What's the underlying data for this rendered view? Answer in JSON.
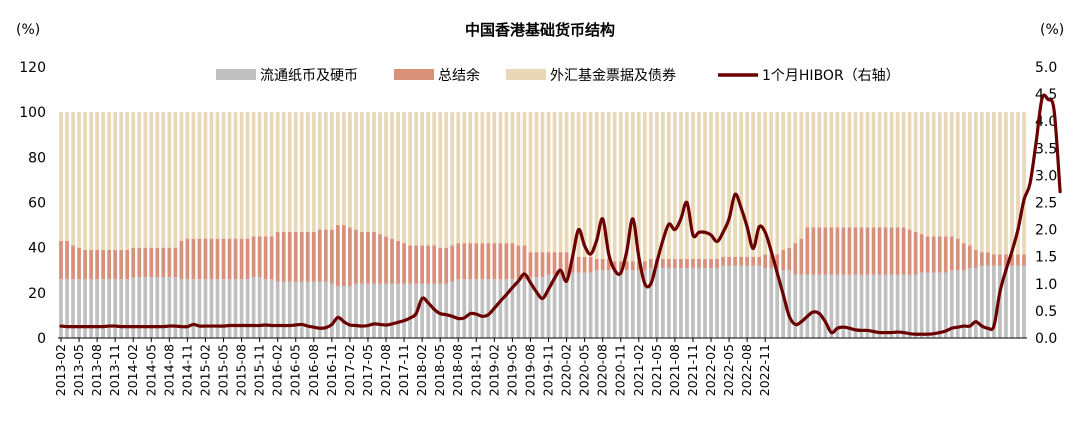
{
  "chart_data": {
    "type": "bar",
    "title": "中国香港基础货币结构",
    "left_axis_unit": "(%)",
    "right_axis_unit": "(%)",
    "ylim": [
      0,
      120
    ],
    "y2lim": [
      0,
      5.0
    ],
    "y_ticks": [
      "0",
      "20",
      "40",
      "60",
      "80",
      "100",
      "120"
    ],
    "y2_ticks": [
      "0.0",
      "0.5",
      "1.0",
      "1.5",
      "2.0",
      "2.5",
      "3.0",
      "3.5",
      "4.0",
      "4.5",
      "5.0"
    ],
    "x_tick_labels": [
      "2013-02",
      "2013-05",
      "2013-08",
      "2013-11",
      "2014-02",
      "2014-05",
      "2014-08",
      "2014-11",
      "2015-02",
      "2015-05",
      "2015-08",
      "2015-11",
      "2016-02",
      "2016-05",
      "2016-08",
      "2016-11",
      "2017-02",
      "2017-05",
      "2017-08",
      "2017-11",
      "2018-02",
      "2018-05",
      "2018-08",
      "2018-11",
      "2019-02",
      "2019-05",
      "2019-08",
      "2019-11",
      "2020-02",
      "2020-05",
      "2020-08",
      "2020-11",
      "2021-02",
      "2021-05",
      "2021-08",
      "2021-11",
      "2022-02",
      "2022-05",
      "2022-08",
      "2022-11"
    ],
    "legend": {
      "placement": "top"
    },
    "colors": {
      "currency": "#c0c0c0",
      "balance": "#d9907b",
      "efbn": "#e8d8b8",
      "hibor": "#6b0000"
    },
    "series": [
      {
        "name": "流通纸币及硬币",
        "type": "stacked-bar",
        "values": [
          26,
          26,
          26,
          26,
          26,
          26,
          26,
          26,
          26,
          26,
          26,
          26,
          27,
          27,
          27,
          27,
          27,
          27,
          27,
          27,
          26,
          26,
          26,
          26,
          26,
          26,
          26,
          26,
          26,
          26,
          26,
          26,
          27,
          27,
          26,
          26,
          25,
          25,
          25,
          25,
          25,
          25,
          25,
          25,
          25,
          24,
          23,
          23,
          23,
          24,
          24,
          24,
          24,
          24,
          24,
          24,
          24,
          24,
          24,
          24,
          24,
          24,
          24,
          24,
          24,
          25,
          26,
          26,
          26,
          26,
          26,
          26,
          26,
          26,
          26,
          26,
          26,
          26,
          27,
          27,
          27,
          28,
          28,
          28,
          28,
          29,
          29,
          29,
          29,
          30,
          30,
          30,
          30,
          30,
          30,
          30,
          30,
          30,
          31,
          31,
          31,
          31,
          31,
          31,
          31,
          31,
          31,
          31,
          31,
          31,
          32,
          32,
          32,
          32,
          32,
          32,
          32,
          31,
          31,
          31,
          30,
          30,
          28,
          28,
          28,
          28,
          28,
          28,
          28,
          28,
          28,
          28,
          28,
          28,
          28,
          28,
          28,
          28,
          28,
          28,
          28,
          28,
          28,
          29,
          29,
          29,
          29,
          29,
          30,
          30,
          30,
          31,
          31,
          32,
          32,
          32,
          32,
          32,
          32,
          32,
          32
        ]
      },
      {
        "name": "总结余",
        "type": "stacked-bar",
        "values": [
          17,
          17,
          15,
          14,
          13,
          13,
          13,
          13,
          13,
          13,
          13,
          13,
          13,
          13,
          13,
          13,
          13,
          13,
          13,
          13,
          17,
          18,
          18,
          18,
          18,
          18,
          18,
          18,
          18,
          18,
          18,
          18,
          18,
          18,
          19,
          19,
          22,
          22,
          22,
          22,
          22,
          22,
          22,
          23,
          23,
          24,
          27,
          27,
          26,
          24,
          23,
          23,
          23,
          22,
          21,
          20,
          19,
          18,
          17,
          17,
          17,
          17,
          17,
          16,
          16,
          16,
          16,
          16,
          16,
          16,
          16,
          16,
          16,
          16,
          16,
          16,
          15,
          15,
          11,
          11,
          11,
          10,
          10,
          10,
          10,
          8,
          7,
          7,
          7,
          5,
          5,
          5,
          4,
          4,
          4,
          4,
          4,
          4,
          4,
          4,
          4,
          4,
          4,
          4,
          4,
          4,
          4,
          4,
          4,
          4,
          4,
          4,
          4,
          4,
          4,
          4,
          4,
          6,
          6,
          6,
          9,
          10,
          14,
          16,
          21,
          21,
          21,
          21,
          21,
          21,
          21,
          21,
          21,
          21,
          21,
          21,
          21,
          21,
          21,
          21,
          21,
          20,
          19,
          17,
          16,
          16,
          16,
          16,
          15,
          14,
          12,
          10,
          8,
          6,
          6,
          5,
          5,
          5,
          5,
          5,
          5
        ]
      },
      {
        "name": "外汇基金票据及债券",
        "type": "stacked-bar",
        "values": [
          57,
          57,
          59,
          60,
          61,
          61,
          61,
          61,
          61,
          61,
          61,
          61,
          60,
          60,
          60,
          60,
          60,
          60,
          60,
          60,
          57,
          56,
          56,
          56,
          56,
          56,
          56,
          56,
          56,
          56,
          56,
          56,
          55,
          55,
          55,
          55,
          53,
          53,
          53,
          53,
          53,
          53,
          53,
          52,
          52,
          52,
          50,
          50,
          51,
          52,
          53,
          53,
          53,
          54,
          55,
          56,
          57,
          58,
          59,
          59,
          59,
          59,
          59,
          60,
          60,
          59,
          58,
          58,
          58,
          58,
          58,
          58,
          58,
          58,
          58,
          58,
          59,
          59,
          62,
          62,
          62,
          62,
          62,
          62,
          62,
          63,
          64,
          64,
          64,
          65,
          65,
          65,
          66,
          66,
          66,
          66,
          66,
          66,
          65,
          65,
          65,
          65,
          65,
          65,
          65,
          65,
          65,
          65,
          65,
          65,
          64,
          64,
          64,
          64,
          64,
          64,
          64,
          63,
          63,
          63,
          61,
          60,
          58,
          56,
          51,
          51,
          51,
          51,
          51,
          51,
          51,
          51,
          51,
          51,
          51,
          51,
          51,
          51,
          51,
          51,
          51,
          52,
          53,
          54,
          55,
          55,
          55,
          55,
          55,
          56,
          58,
          59,
          61,
          62,
          62,
          63,
          63,
          63,
          63,
          63,
          63
        ]
      },
      {
        "name": "1个月HIBOR（右轴）",
        "type": "line",
        "axis": "right",
        "values": [
          0.22,
          0.21,
          0.21,
          0.21,
          0.21,
          0.21,
          0.21,
          0.21,
          0.22,
          0.22,
          0.21,
          0.21,
          0.21,
          0.21,
          0.21,
          0.21,
          0.21,
          0.21,
          0.22,
          0.22,
          0.21,
          0.21,
          0.25,
          0.22,
          0.22,
          0.22,
          0.22,
          0.22,
          0.23,
          0.23,
          0.23,
          0.23,
          0.23,
          0.23,
          0.24,
          0.23,
          0.23,
          0.23,
          0.23,
          0.24,
          0.25,
          0.22,
          0.2,
          0.18,
          0.19,
          0.25,
          0.38,
          0.3,
          0.24,
          0.23,
          0.22,
          0.23,
          0.26,
          0.25,
          0.24,
          0.26,
          0.29,
          0.32,
          0.37,
          0.45,
          0.73,
          0.65,
          0.53,
          0.45,
          0.43,
          0.4,
          0.36,
          0.37,
          0.45,
          0.44,
          0.4,
          0.43,
          0.55,
          0.68,
          0.8,
          0.93,
          1.05,
          1.18,
          1.02,
          0.85,
          0.73,
          0.9,
          1.1,
          1.25,
          1.05,
          1.5,
          2.0,
          1.7,
          1.55,
          1.8,
          2.2,
          1.55,
          1.25,
          1.2,
          1.6,
          2.2,
          1.5,
          1.0,
          1.0,
          1.4,
          1.8,
          2.1,
          2.0,
          2.2,
          2.5,
          1.9,
          1.95,
          1.95,
          1.9,
          1.78,
          1.95,
          2.2,
          2.65,
          2.4,
          2.05,
          1.65,
          2.05,
          1.95,
          1.6,
          1.2,
          0.8,
          0.4,
          0.25,
          0.3,
          0.4,
          0.48,
          0.45,
          0.3,
          0.1,
          0.18,
          0.2,
          0.18,
          0.15,
          0.14,
          0.14,
          0.12,
          0.1,
          0.1,
          0.1,
          0.11,
          0.1,
          0.08,
          0.07,
          0.07,
          0.07,
          0.08,
          0.1,
          0.13,
          0.18,
          0.2,
          0.22,
          0.22,
          0.3,
          0.22,
          0.18,
          0.22,
          0.85,
          1.25,
          1.6,
          2.0,
          2.55,
          2.85,
          3.6,
          4.42,
          4.4,
          4.2,
          2.7
        ]
      }
    ]
  }
}
